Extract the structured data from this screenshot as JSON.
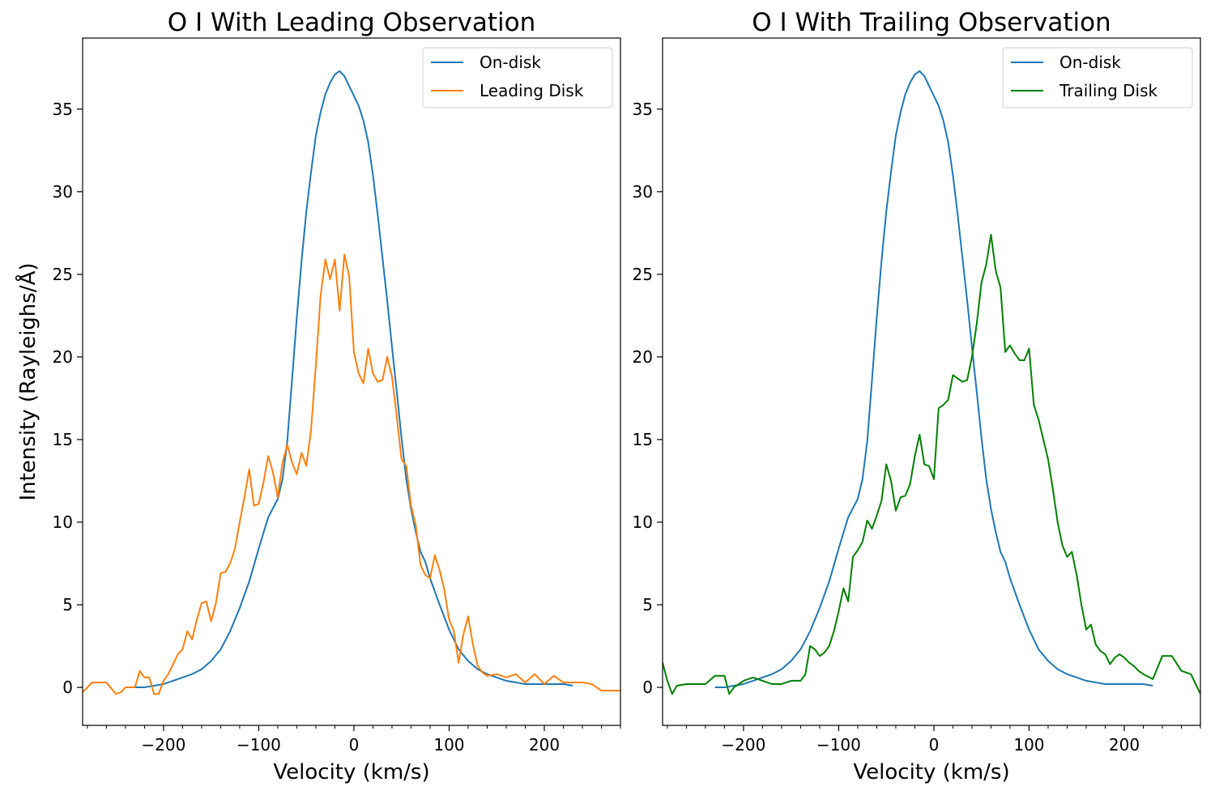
{
  "chart_data": [
    {
      "type": "line",
      "title": "O I With Leading Observation",
      "xlabel": "Velocity (km/s)",
      "ylabel": "Intensity (Rayleighs/Å)",
      "xlim": [
        -285,
        280
      ],
      "ylim": [
        -2.3,
        39.3
      ],
      "xticks": [
        -200,
        -100,
        0,
        100,
        200
      ],
      "xtick_labels": [
        "−200",
        "−100",
        "0",
        "100",
        "200"
      ],
      "yticks": [
        0,
        5,
        10,
        15,
        20,
        25,
        30,
        35
      ],
      "ytick_labels": [
        "0",
        "5",
        "10",
        "15",
        "20",
        "25",
        "30",
        "35"
      ],
      "grid": false,
      "legend": "top-right",
      "series": [
        {
          "name": "On-disk",
          "color": "#1f77b4",
          "x": [
            -230,
            -220,
            -210,
            -200,
            -190,
            -180,
            -170,
            -160,
            -150,
            -140,
            -130,
            -120,
            -110,
            -100,
            -90,
            -80,
            -75,
            -70,
            -65,
            -60,
            -55,
            -50,
            -45,
            -40,
            -35,
            -30,
            -25,
            -20,
            -15,
            -10,
            -5,
            0,
            5,
            10,
            15,
            20,
            25,
            30,
            35,
            40,
            45,
            50,
            55,
            60,
            65,
            70,
            75,
            80,
            90,
            100,
            110,
            120,
            130,
            140,
            150,
            160,
            170,
            180,
            190,
            200,
            210,
            220,
            230
          ],
          "y": [
            0,
            0,
            0.1,
            0.2,
            0.4,
            0.6,
            0.8,
            1.1,
            1.6,
            2.3,
            3.4,
            4.8,
            6.4,
            8.4,
            10.3,
            11.4,
            12.6,
            14.9,
            18.6,
            22.4,
            25.8,
            28.8,
            31.2,
            33.4,
            34.8,
            35.9,
            36.6,
            37.1,
            37.3,
            37.0,
            36.4,
            35.8,
            35.2,
            34.3,
            33.0,
            31.0,
            28.6,
            26.0,
            23.4,
            20.6,
            17.9,
            15.1,
            12.6,
            10.8,
            9.4,
            8.2,
            7.6,
            6.6,
            5.0,
            3.5,
            2.3,
            1.6,
            1.1,
            0.8,
            0.6,
            0.4,
            0.3,
            0.2,
            0.2,
            0.2,
            0.2,
            0.2,
            0.1
          ]
        },
        {
          "name": "Leading Disk",
          "color": "#ff7f0e",
          "x": [
            -285,
            -280,
            -275,
            -270,
            -260,
            -250,
            -245,
            -240,
            -235,
            -230,
            -225,
            -220,
            -215,
            -210,
            -205,
            -200,
            -195,
            -190,
            -185,
            -180,
            -175,
            -170,
            -165,
            -160,
            -155,
            -150,
            -145,
            -140,
            -135,
            -130,
            -125,
            -120,
            -115,
            -110,
            -105,
            -100,
            -95,
            -90,
            -85,
            -80,
            -75,
            -70,
            -65,
            -60,
            -55,
            -50,
            -45,
            -40,
            -35,
            -30,
            -25,
            -20,
            -15,
            -10,
            -5,
            0,
            5,
            10,
            15,
            20,
            25,
            30,
            35,
            40,
            45,
            50,
            55,
            60,
            65,
            70,
            75,
            80,
            85,
            90,
            95,
            100,
            105,
            110,
            115,
            120,
            125,
            130,
            135,
            140,
            150,
            160,
            170,
            180,
            190,
            200,
            210,
            220,
            230,
            240,
            250,
            260,
            270,
            280
          ],
          "y": [
            -0.3,
            0,
            0.3,
            0.3,
            0.3,
            -0.4,
            -0.3,
            0,
            0,
            0,
            1.0,
            0.6,
            0.6,
            -0.4,
            -0.4,
            0.4,
            0.8,
            1.4,
            2.0,
            2.3,
            3.4,
            2.9,
            4.1,
            5.1,
            5.2,
            4.0,
            5.1,
            6.9,
            7.0,
            7.5,
            8.4,
            10.0,
            11.5,
            13.2,
            11.0,
            11.1,
            12.4,
            14.0,
            13.0,
            11.5,
            13.6,
            14.7,
            13.6,
            12.9,
            14.2,
            13.4,
            15.6,
            19.5,
            23.7,
            25.9,
            24.7,
            25.9,
            22.8,
            26.2,
            24.9,
            20.3,
            19.0,
            18.4,
            20.5,
            19.0,
            18.5,
            18.6,
            20.0,
            18.8,
            16.4,
            13.8,
            13.4,
            11.0,
            9.8,
            7.4,
            6.8,
            6.6,
            8.0,
            7.1,
            5.9,
            4.1,
            3.4,
            1.5,
            3.2,
            4.3,
            2.6,
            1.3,
            0.9,
            0.7,
            0.8,
            0.6,
            0.8,
            0.3,
            0.8,
            0.2,
            0.7,
            0.3,
            0.3,
            0.3,
            0.2,
            -0.2,
            -0.2,
            -0.2
          ]
        }
      ]
    },
    {
      "type": "line",
      "title": "O I With Trailing Observation",
      "xlabel": "Velocity (km/s)",
      "ylabel": "",
      "xlim": [
        -285,
        280
      ],
      "ylim": [
        -2.3,
        39.3
      ],
      "xticks": [
        -200,
        -100,
        0,
        100,
        200
      ],
      "xtick_labels": [
        "−200",
        "−100",
        "0",
        "100",
        "200"
      ],
      "yticks": [
        0,
        5,
        10,
        15,
        20,
        25,
        30,
        35
      ],
      "ytick_labels": [
        "0",
        "5",
        "10",
        "15",
        "20",
        "25",
        "30",
        "35"
      ],
      "grid": false,
      "legend": "top-right",
      "series": [
        {
          "name": "On-disk",
          "color": "#1f77b4",
          "x": [
            -230,
            -220,
            -210,
            -200,
            -190,
            -180,
            -170,
            -160,
            -150,
            -140,
            -130,
            -120,
            -110,
            -100,
            -90,
            -80,
            -75,
            -70,
            -65,
            -60,
            -55,
            -50,
            -45,
            -40,
            -35,
            -30,
            -25,
            -20,
            -15,
            -10,
            -5,
            0,
            5,
            10,
            15,
            20,
            25,
            30,
            35,
            40,
            45,
            50,
            55,
            60,
            65,
            70,
            75,
            80,
            90,
            100,
            110,
            120,
            130,
            140,
            150,
            160,
            170,
            180,
            190,
            200,
            210,
            220,
            230
          ],
          "y": [
            0,
            0,
            0.1,
            0.2,
            0.4,
            0.6,
            0.8,
            1.1,
            1.6,
            2.3,
            3.4,
            4.8,
            6.4,
            8.4,
            10.3,
            11.4,
            12.6,
            14.9,
            18.6,
            22.4,
            25.8,
            28.8,
            31.2,
            33.4,
            34.8,
            35.9,
            36.6,
            37.1,
            37.3,
            37.0,
            36.4,
            35.8,
            35.2,
            34.3,
            33.0,
            31.0,
            28.6,
            26.0,
            23.4,
            20.6,
            17.9,
            15.1,
            12.6,
            10.8,
            9.4,
            8.2,
            7.6,
            6.6,
            5.0,
            3.5,
            2.3,
            1.6,
            1.1,
            0.8,
            0.6,
            0.4,
            0.3,
            0.2,
            0.2,
            0.2,
            0.2,
            0.2,
            0.1
          ]
        },
        {
          "name": "Trailing Disk",
          "color": "#008000",
          "x": [
            -285,
            -280,
            -275,
            -270,
            -260,
            -250,
            -240,
            -230,
            -220,
            -215,
            -210,
            -200,
            -190,
            -180,
            -170,
            -160,
            -150,
            -140,
            -135,
            -130,
            -125,
            -120,
            -115,
            -110,
            -105,
            -100,
            -95,
            -90,
            -85,
            -80,
            -75,
            -70,
            -65,
            -60,
            -55,
            -50,
            -45,
            -40,
            -35,
            -30,
            -25,
            -20,
            -15,
            -10,
            -5,
            0,
            5,
            10,
            15,
            20,
            25,
            30,
            35,
            40,
            45,
            50,
            55,
            60,
            65,
            70,
            75,
            80,
            85,
            90,
            95,
            100,
            105,
            110,
            115,
            120,
            125,
            130,
            135,
            140,
            145,
            150,
            155,
            160,
            165,
            170,
            175,
            180,
            185,
            190,
            195,
            200,
            205,
            210,
            215,
            220,
            230,
            240,
            250,
            260,
            270,
            280
          ],
          "y": [
            1.5,
            0.4,
            -0.4,
            0.1,
            0.2,
            0.2,
            0.2,
            0.7,
            0.7,
            -0.4,
            0.0,
            0.4,
            0.6,
            0.4,
            0.2,
            0.2,
            0.4,
            0.4,
            0.8,
            2.5,
            2.3,
            1.9,
            2.1,
            2.5,
            3.4,
            4.6,
            6.0,
            5.2,
            7.9,
            8.3,
            8.8,
            10.1,
            9.6,
            10.4,
            11.3,
            13.5,
            12.5,
            10.7,
            11.5,
            11.6,
            12.3,
            14.0,
            15.3,
            13.5,
            13.4,
            12.6,
            16.9,
            17.1,
            17.4,
            18.9,
            18.7,
            18.5,
            18.6,
            20.0,
            22.0,
            24.5,
            25.6,
            27.4,
            25.2,
            24.2,
            20.3,
            20.7,
            20.2,
            19.8,
            19.8,
            20.5,
            17.1,
            16.2,
            15.0,
            13.8,
            12.0,
            10.0,
            8.6,
            7.9,
            8.2,
            6.8,
            5.0,
            3.5,
            3.8,
            2.6,
            2.2,
            2.0,
            1.4,
            1.8,
            2.0,
            1.8,
            1.5,
            1.3,
            1.0,
            0.8,
            0.5,
            1.9,
            1.9,
            1.0,
            0.8,
            -0.4
          ]
        }
      ]
    }
  ]
}
